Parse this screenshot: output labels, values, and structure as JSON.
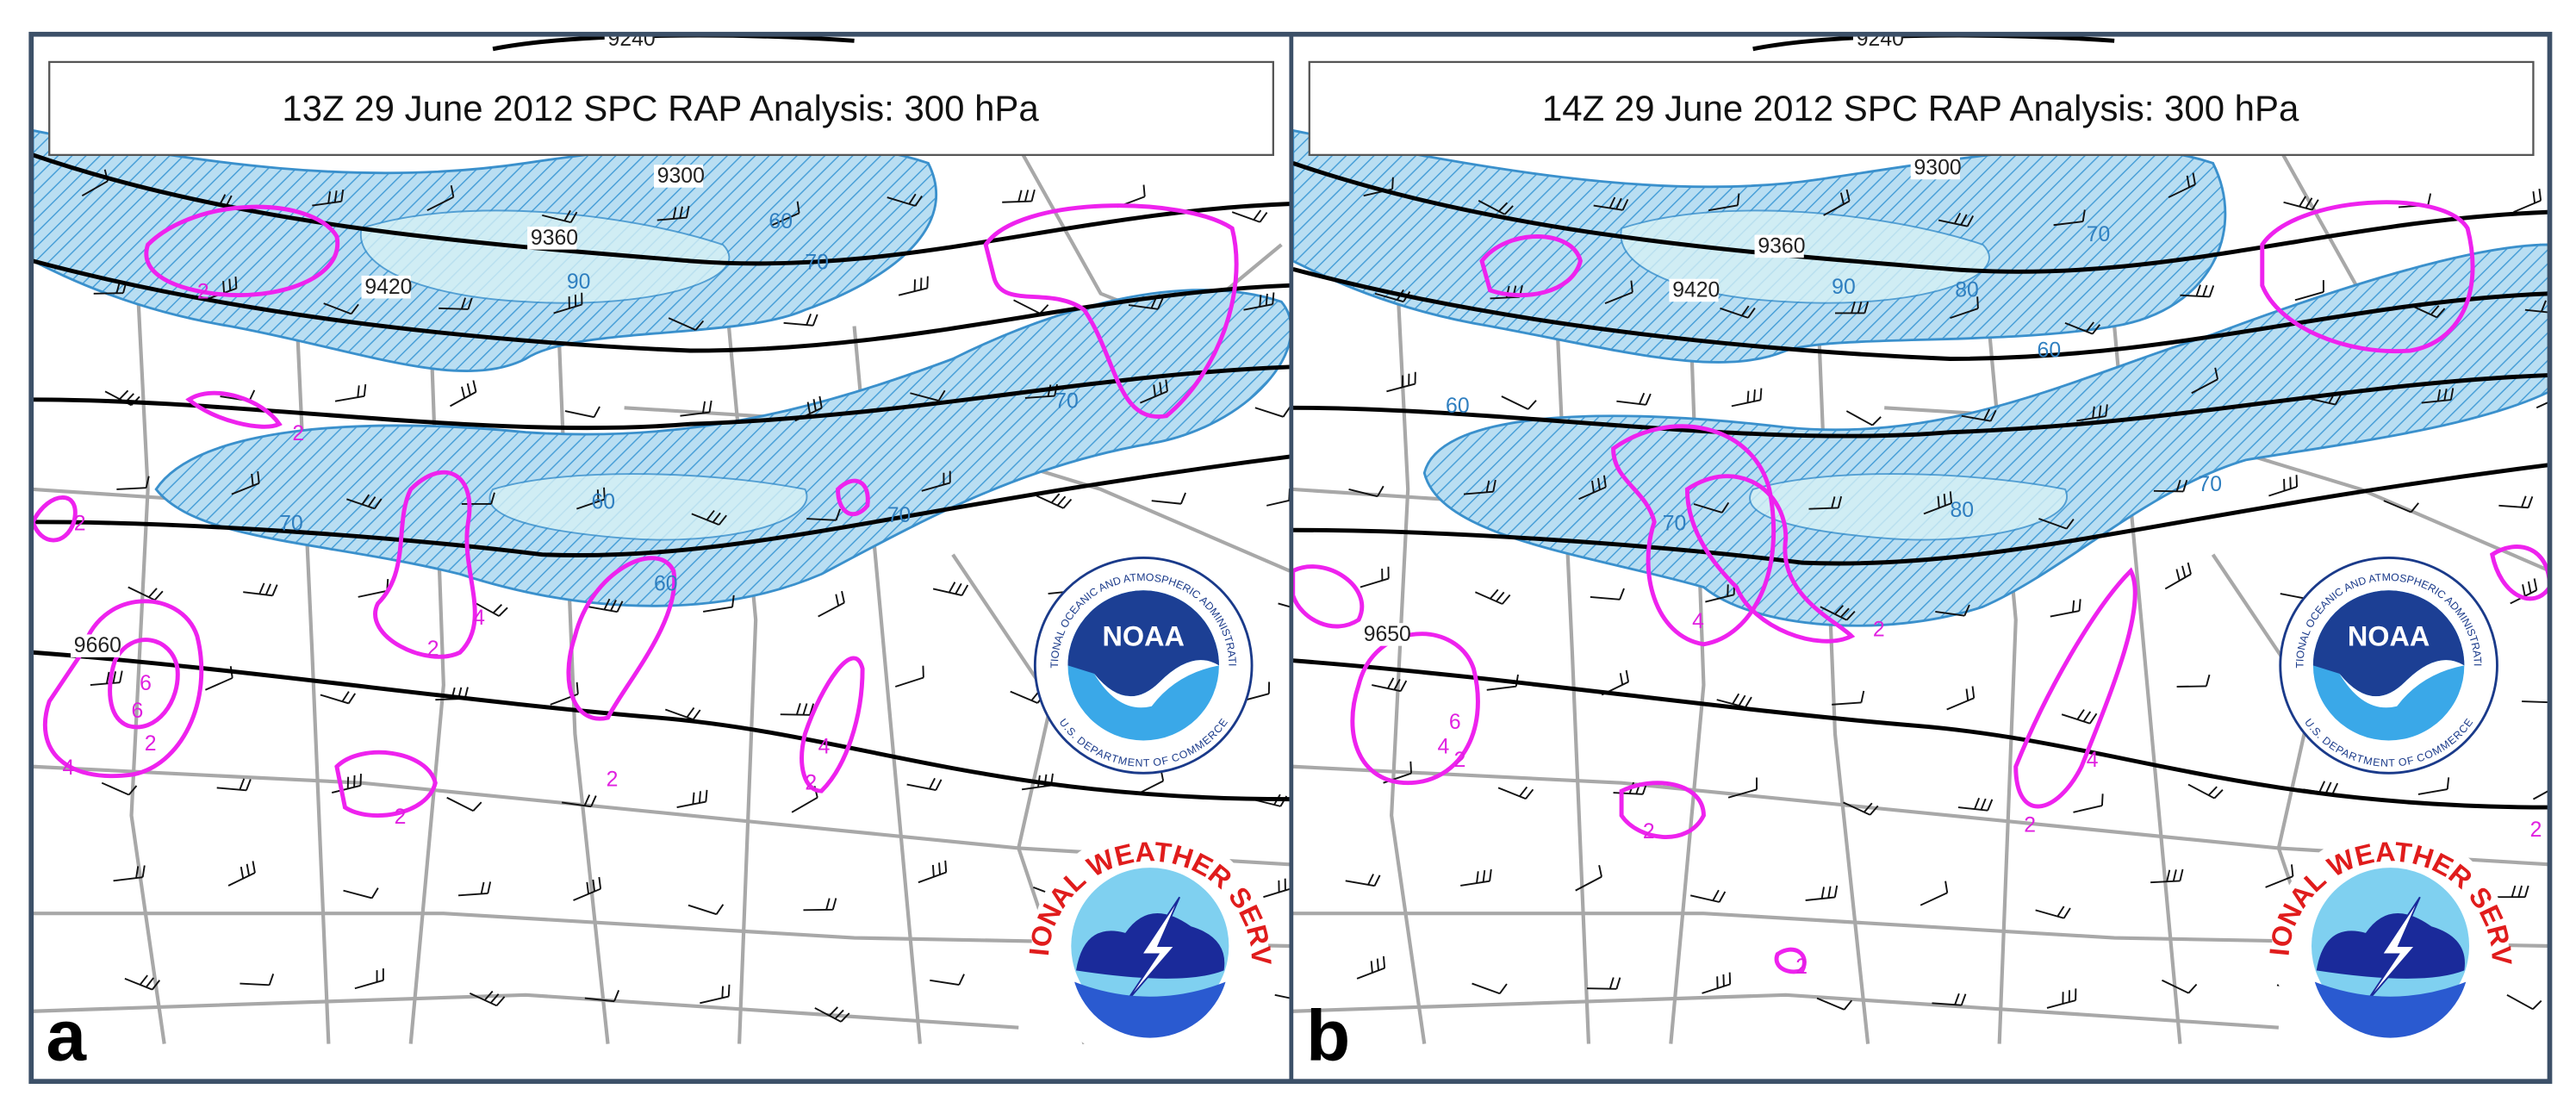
{
  "panels": [
    {
      "letter": "a",
      "title": "13Z 29 June 2012 SPC RAP Analysis: 300 hPa",
      "height_labels": [
        "9240",
        "9300",
        "9360",
        "9420",
        "9660"
      ],
      "speed_labels": [
        "60",
        "70",
        "90",
        "70",
        "60",
        "70",
        "70",
        "60"
      ],
      "divergence_labels": [
        "2",
        "2",
        "2",
        "2",
        "2",
        "2",
        "2",
        "2",
        "4",
        "4",
        "4",
        "6",
        "6"
      ]
    },
    {
      "letter": "b",
      "title": "14Z 29 June 2012 SPC RAP Analysis: 300 hPa",
      "height_labels": [
        "9240",
        "9300",
        "9360",
        "9420",
        "9650"
      ],
      "speed_labels": [
        "70",
        "90",
        "80",
        "60",
        "60",
        "70",
        "80",
        "70"
      ],
      "divergence_labels": [
        "2",
        "2",
        "2",
        "2",
        "2",
        "2",
        "4",
        "4",
        "4",
        "6"
      ]
    }
  ],
  "logos": {
    "noaa": "NOAA",
    "noaa_ring": "NATIONAL OCEANIC AND ATMOSPHERIC ADMINISTRATION",
    "noaa_dept": "U.S. DEPARTMENT OF COMMERCE",
    "nws_ring": "NATIONAL WEATHER SERVICE"
  }
}
